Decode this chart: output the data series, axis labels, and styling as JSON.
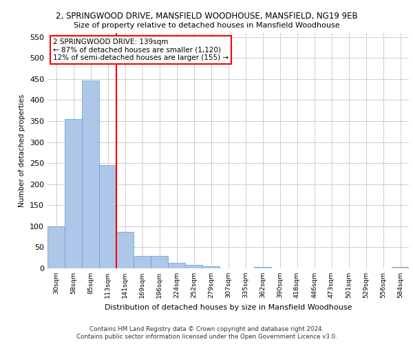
{
  "title1": "2, SPRINGWOOD DRIVE, MANSFIELD WOODHOUSE, MANSFIELD, NG19 9EB",
  "title2": "Size of property relative to detached houses in Mansfield Woodhouse",
  "xlabel": "Distribution of detached houses by size in Mansfield Woodhouse",
  "ylabel": "Number of detached properties",
  "footer1": "Contains HM Land Registry data © Crown copyright and database right 2024.",
  "footer2": "Contains public sector information licensed under the Open Government Licence v3.0.",
  "categories": [
    "30sqm",
    "58sqm",
    "85sqm",
    "113sqm",
    "141sqm",
    "169sqm",
    "196sqm",
    "224sqm",
    "252sqm",
    "279sqm",
    "307sqm",
    "335sqm",
    "362sqm",
    "390sqm",
    "418sqm",
    "446sqm",
    "473sqm",
    "501sqm",
    "529sqm",
    "556sqm",
    "584sqm"
  ],
  "values": [
    100,
    355,
    447,
    245,
    86,
    30,
    30,
    13,
    8,
    5,
    0,
    0,
    3,
    0,
    0,
    0,
    0,
    0,
    0,
    0,
    4
  ],
  "bar_color": "#aec6e8",
  "bar_edge_color": "#5a9fd4",
  "vline_index": 4,
  "vline_color": "red",
  "annotation_text": "2 SPRINGWOOD DRIVE: 139sqm\n← 87% of detached houses are smaller (1,120)\n12% of semi-detached houses are larger (155) →",
  "annotation_box_color": "white",
  "annotation_box_edge_color": "red",
  "ylim": [
    0,
    560
  ],
  "yticks": [
    0,
    50,
    100,
    150,
    200,
    250,
    300,
    350,
    400,
    450,
    500,
    550
  ],
  "bg_color": "white",
  "grid_color": "#cccccc"
}
